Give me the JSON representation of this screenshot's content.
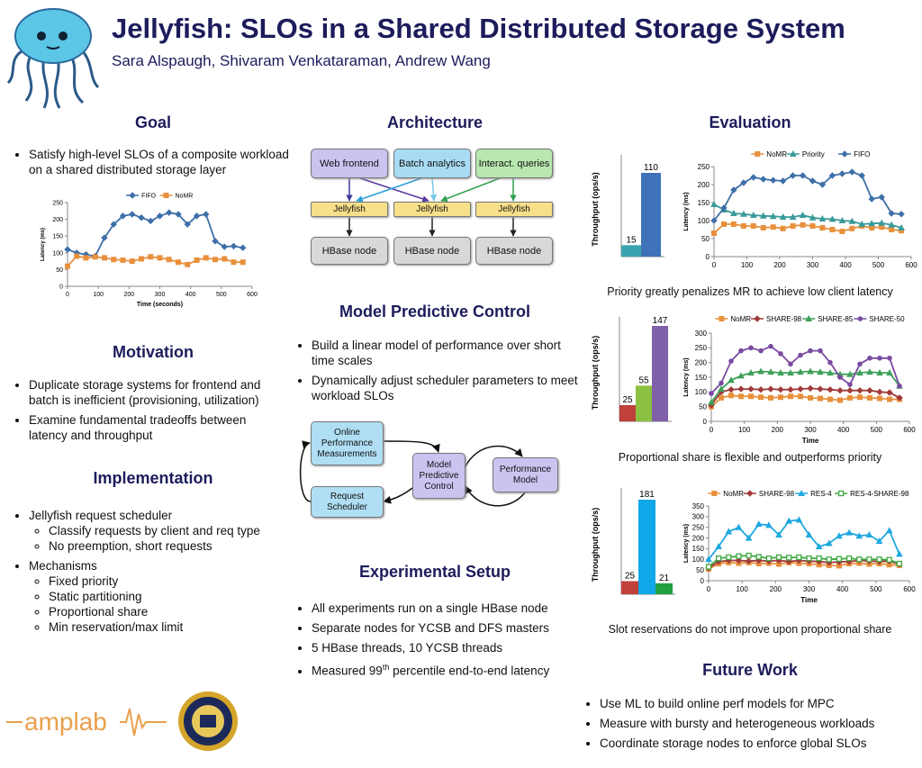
{
  "header": {
    "title": "Jellyfish: SLOs in a Shared Distributed Storage System",
    "authors": "Sara Alspaugh, Shivaram Venkataraman, Andrew Wang"
  },
  "goal": {
    "title": "Goal",
    "bullets": [
      "Satisfy high-level SLOs of a composite workload on a shared distributed storage layer"
    ]
  },
  "motivation": {
    "title": "Motivation",
    "bullets": [
      "Duplicate storage systems for frontend and batch is inefficient (provisioning, utilization)",
      "Examine fundamental tradeoffs between latency and throughput"
    ]
  },
  "implementation": {
    "title": "Implementation",
    "items": [
      {
        "text": "Jellyfish request scheduler",
        "sub": [
          "Classify requests by client and req type",
          "No preemption, short requests"
        ]
      },
      {
        "text": "Mechanisms",
        "sub": [
          "Fixed priority",
          "Static partitioning",
          "Proportional share",
          "Min reservation/max limit"
        ]
      }
    ]
  },
  "architecture": {
    "title": "Architecture",
    "sources": [
      "Web frontend",
      "Batch analytics",
      "Interact. queries"
    ],
    "schedulers": [
      "Jellyfish",
      "Jellyfish",
      "Jellyfish"
    ],
    "nodes": [
      "HBase node",
      "HBase node",
      "HBase node"
    ]
  },
  "mpc": {
    "title": "Model Predictive Control",
    "bullets": [
      "Build a linear model of performance over short time scales",
      "Dynamically adjust scheduler parameters to meet workload SLOs"
    ],
    "diagram": {
      "measurements": "Online Performance Measurements",
      "controller": "Model Predictive Control",
      "model": "Performance Model",
      "scheduler": "Request Scheduler"
    }
  },
  "setup": {
    "title": "Experimental Setup",
    "bullets": [
      "All experiments run on a single HBase node",
      "Separate nodes for YCSB and DFS masters",
      "5 HBase threads, 10 YCSB threads"
    ],
    "last_bullet": {
      "text": "Measured 99",
      "sup": "th",
      "rest": " percentile end-to-end latency"
    }
  },
  "evaluation": {
    "title": "Evaluation",
    "captions": [
      "Priority greatly penalizes MR to achieve low client latency",
      "Proportional share is flexible and outperforms priority",
      "Slot reservations do not improve upon proportional share"
    ]
  },
  "future": {
    "title": "Future Work",
    "bullets": [
      "Use ML to build online perf models for MPC",
      "Measure with bursty and heterogeneous workloads",
      "Coordinate storage nodes to enforce global SLOs"
    ]
  },
  "logo": "amplab",
  "chart_data": [
    {
      "type": "line",
      "ylabel": "Latency (ms)",
      "xlabel": "Time (seconds)",
      "x": [
        0,
        30,
        60,
        90,
        120,
        150,
        180,
        210,
        240,
        270,
        300,
        330,
        360,
        390,
        420,
        450,
        480,
        510,
        540,
        570
      ],
      "series": [
        {
          "name": "FIFO",
          "color": "#3d6fa8",
          "marker": "diamond",
          "values": [
            110,
            100,
            95,
            90,
            145,
            185,
            210,
            215,
            205,
            195,
            210,
            220,
            215,
            185,
            210,
            215,
            135,
            118,
            120,
            115
          ]
        },
        {
          "name": "NoMR",
          "color": "#e8903c",
          "marker": "square",
          "values": [
            60,
            90,
            85,
            88,
            85,
            80,
            78,
            75,
            82,
            88,
            85,
            80,
            72,
            65,
            78,
            85,
            80,
            82,
            72,
            72
          ]
        }
      ],
      "xlim": [
        0,
        600
      ],
      "xticks": [
        0,
        100,
        200,
        300,
        400,
        500,
        600
      ],
      "ylim": [
        0,
        250
      ],
      "yticks": [
        0,
        50,
        100,
        150,
        200,
        250
      ],
      "legend": "top"
    },
    {
      "type": "bar",
      "ylabel": "Throughput (ops/s)",
      "values": [
        15,
        110
      ],
      "colors": [
        "#3aa3b0",
        "#3f72b8"
      ]
    },
    {
      "type": "line",
      "ylabel": "Latency (ms)",
      "x": [
        0,
        30,
        60,
        90,
        120,
        150,
        180,
        210,
        240,
        270,
        300,
        330,
        360,
        390,
        420,
        450,
        480,
        510,
        540,
        570
      ],
      "series": [
        {
          "name": "NoMR",
          "color": "#e8903c",
          "marker": "square",
          "values": [
            65,
            90,
            90,
            85,
            85,
            80,
            82,
            78,
            85,
            88,
            85,
            80,
            75,
            70,
            78,
            85,
            80,
            82,
            75,
            72
          ]
        },
        {
          "name": "Priority",
          "color": "#3a9a9a",
          "marker": "triangle",
          "values": [
            145,
            130,
            120,
            118,
            115,
            113,
            112,
            110,
            110,
            115,
            108,
            105,
            104,
            100,
            98,
            90,
            92,
            93,
            88,
            80
          ]
        },
        {
          "name": "FIFO",
          "color": "#3d6fa8",
          "marker": "diamond",
          "values": [
            100,
            135,
            185,
            205,
            220,
            215,
            212,
            210,
            225,
            225,
            210,
            200,
            225,
            230,
            235,
            225,
            160,
            165,
            120,
            118
          ]
        }
      ],
      "xlim": [
        0,
        600
      ],
      "xticks": [
        0,
        100,
        200,
        300,
        400,
        500,
        600
      ],
      "ylim": [
        0,
        250
      ],
      "yticks": [
        0,
        50,
        100,
        150,
        200,
        250
      ],
      "legend": "top"
    },
    {
      "type": "bar",
      "ylabel": "Throughput (ops/s)",
      "values": [
        25,
        55,
        147
      ],
      "colors": [
        "#c0403a",
        "#8cc040",
        "#8060a8"
      ]
    },
    {
      "type": "line",
      "ylabel": "Latency (ms)",
      "xlabel": "Time",
      "x": [
        0,
        30,
        60,
        90,
        120,
        150,
        180,
        210,
        240,
        270,
        300,
        330,
        360,
        390,
        420,
        450,
        480,
        510,
        540,
        570
      ],
      "series": [
        {
          "name": "NoMR",
          "color": "#e8903c",
          "marker": "square",
          "values": [
            50,
            80,
            88,
            85,
            85,
            82,
            80,
            82,
            85,
            85,
            80,
            78,
            75,
            72,
            80,
            82,
            80,
            78,
            75,
            75
          ]
        },
        {
          "name": "SHARE-98",
          "color": "#a03a3a",
          "marker": "diamond",
          "values": [
            55,
            100,
            108,
            110,
            110,
            108,
            110,
            108,
            108,
            110,
            112,
            110,
            108,
            105,
            105,
            105,
            105,
            100,
            98,
            80
          ]
        },
        {
          "name": "SHARE-85",
          "color": "#3fa05a",
          "marker": "triangle",
          "values": [
            65,
            110,
            140,
            155,
            165,
            170,
            168,
            165,
            165,
            168,
            170,
            168,
            165,
            160,
            160,
            165,
            168,
            165,
            165,
            120
          ]
        },
        {
          "name": "SHARE-50",
          "color": "#7a4aa0",
          "marker": "circle",
          "values": [
            95,
            130,
            205,
            240,
            250,
            240,
            255,
            230,
            195,
            225,
            240,
            240,
            200,
            150,
            125,
            195,
            215,
            215,
            215,
            120
          ]
        }
      ],
      "xlim": [
        0,
        600
      ],
      "xticks": [
        0,
        100,
        200,
        300,
        400,
        500,
        600
      ],
      "ylim": [
        0,
        300
      ],
      "yticks": [
        0,
        50,
        100,
        150,
        200,
        250,
        300
      ],
      "legend": "top"
    },
    {
      "type": "bar",
      "ylabel": "Throughput (ops/s)",
      "values": [
        25,
        181,
        21
      ],
      "colors": [
        "#c0403a",
        "#10a8e8",
        "#20a040"
      ]
    },
    {
      "type": "line",
      "ylabel": "Latency (ms)",
      "xlabel": "Time",
      "x": [
        0,
        30,
        60,
        90,
        120,
        150,
        180,
        210,
        240,
        270,
        300,
        330,
        360,
        390,
        420,
        450,
        480,
        510,
        540,
        570
      ],
      "series": [
        {
          "name": "NoMR",
          "color": "#e8903c",
          "marker": "square",
          "values": [
            55,
            80,
            85,
            82,
            85,
            80,
            82,
            78,
            85,
            82,
            80,
            75,
            72,
            70,
            80,
            82,
            78,
            80,
            75,
            72
          ]
        },
        {
          "name": "SHARE-98",
          "color": "#a03a3a",
          "marker": "diamond",
          "values": [
            60,
            90,
            95,
            95,
            92,
            95,
            92,
            95,
            90,
            95,
            92,
            90,
            85,
            88,
            90,
            95,
            92,
            90,
            92,
            78
          ]
        },
        {
          "name": "RES-4",
          "color": "#1fa8e0",
          "marker": "triangle",
          "values": [
            100,
            160,
            230,
            250,
            200,
            265,
            260,
            215,
            280,
            285,
            215,
            160,
            175,
            210,
            225,
            210,
            215,
            185,
            235,
            125
          ]
        },
        {
          "name": "RES-4-SHARE-98",
          "color": "#3fa840",
          "marker": "hollow-square",
          "values": [
            65,
            105,
            110,
            115,
            118,
            112,
            105,
            110,
            108,
            110,
            105,
            105,
            100,
            102,
            105,
            100,
            100,
            100,
            98,
            80
          ]
        }
      ],
      "xlim": [
        0,
        600
      ],
      "xticks": [
        0,
        100,
        200,
        300,
        400,
        500,
        600
      ],
      "ylim": [
        0,
        350
      ],
      "yticks": [
        0,
        50,
        100,
        150,
        200,
        250,
        300,
        350
      ],
      "legend": "top"
    }
  ]
}
